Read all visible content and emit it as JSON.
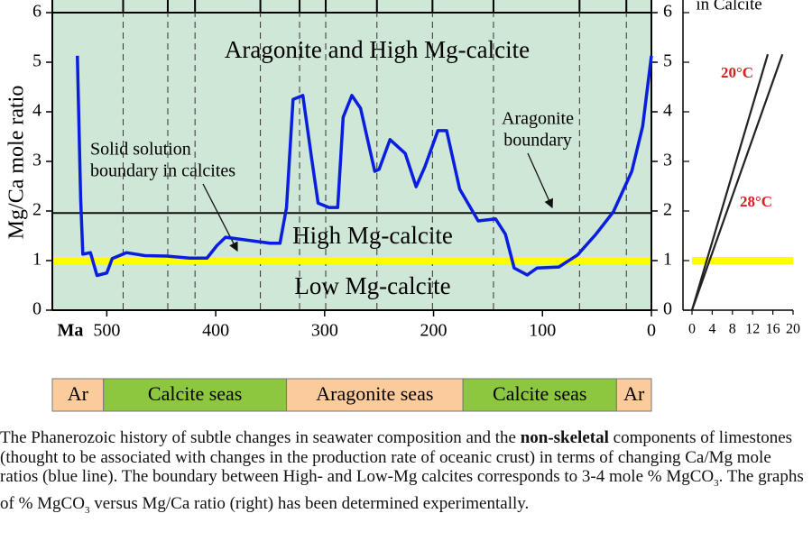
{
  "chart_data": [
    {
      "type": "line",
      "ylabel": "Mg/Ca mole ratio",
      "xunit": "Ma",
      "xlim": [
        550,
        0
      ],
      "xticks": [
        500,
        400,
        300,
        200,
        100,
        0
      ],
      "ylim": [
        0,
        6
      ],
      "yticks": [
        0,
        1,
        2,
        3,
        4,
        5,
        6
      ],
      "series": [
        {
          "color": "#0a1ee0",
          "x": [
            527,
            524,
            522,
            515,
            509,
            500,
            495,
            482,
            465,
            445,
            424,
            408,
            399,
            391,
            374,
            350,
            341,
            335,
            329,
            320,
            312,
            306,
            296,
            288,
            283,
            275,
            267,
            254,
            250,
            240,
            226,
            216,
            208,
            196,
            188,
            176,
            159,
            143,
            134,
            126,
            114,
            105,
            85,
            68,
            51,
            35,
            18,
            8,
            0
          ],
          "values": [
            5.13,
            2.25,
            1.13,
            1.16,
            0.7,
            0.75,
            1.04,
            1.16,
            1.1,
            1.09,
            1.05,
            1.05,
            1.3,
            1.47,
            1.42,
            1.35,
            1.35,
            2.07,
            4.25,
            4.33,
            3.07,
            2.16,
            2.07,
            2.07,
            3.89,
            4.33,
            4.07,
            2.8,
            2.84,
            3.44,
            3.16,
            2.49,
            2.89,
            3.62,
            3.62,
            2.44,
            1.8,
            1.84,
            1.53,
            0.85,
            0.71,
            0.85,
            0.87,
            1.11,
            1.53,
            1.98,
            2.8,
            3.71,
            5.13
          ]
        }
      ],
      "aragonite_boundary": 1.96,
      "calcite_boundary": 1,
      "period_boundaries": [
        485,
        444,
        419,
        359,
        323,
        299,
        252,
        201,
        145,
        66,
        23
      ],
      "annotations": [
        "Aragonite and High Mg-calcite",
        "High Mg-calcite",
        "Low Mg-calcite",
        "Solid solution",
        "boundary in calcites",
        "Aragonite",
        "boundary"
      ]
    },
    {
      "type": "line",
      "title": "in Calcite",
      "xlim": [
        0,
        20
      ],
      "xticks": [
        0,
        4,
        8,
        12,
        16,
        20
      ],
      "ylim": [
        0,
        6
      ],
      "yticks": [
        0,
        1,
        2,
        3,
        4,
        5,
        6
      ],
      "calcite_boundary": 1,
      "series": [
        {
          "name": "20°C",
          "color": "#222222",
          "x": [
            0,
            15
          ],
          "values": [
            0,
            5.16
          ]
        },
        {
          "name": "28°C",
          "color": "#222222",
          "x": [
            0,
            17.9
          ],
          "values": [
            0,
            5.16
          ]
        }
      ]
    }
  ],
  "seas": [
    {
      "label": "Ar",
      "start": 550,
      "end": 503,
      "color": "#fccb9c"
    },
    {
      "label": "Calcite seas",
      "start": 503,
      "end": 335,
      "color": "#8dc63f"
    },
    {
      "label": "Aragonite seas",
      "start": 335,
      "end": 173,
      "color": "#fccb9c"
    },
    {
      "label": "Calcite seas",
      "start": 173,
      "end": 32,
      "color": "#8dc63f"
    },
    {
      "label": "Ar",
      "start": 32,
      "end": 0,
      "color": "#fccb9c"
    }
  ],
  "caption": [
    "The Phanerozoic history of subtle changes in seawater composition and the ",
    "non-skeletal",
    " components of limestones (thought to be associated with changes in the production rate of oceanic crust) in terms of changing Ca/Mg mole ratios (blue line). The boundary between High- and Low-Mg calcites corresponds to 3-4 mole % MgCO",
    "3",
    ". The graphs of % MgCO",
    "3",
    " versus Mg/Ca ratio (right) has been determined experimentally."
  ]
}
